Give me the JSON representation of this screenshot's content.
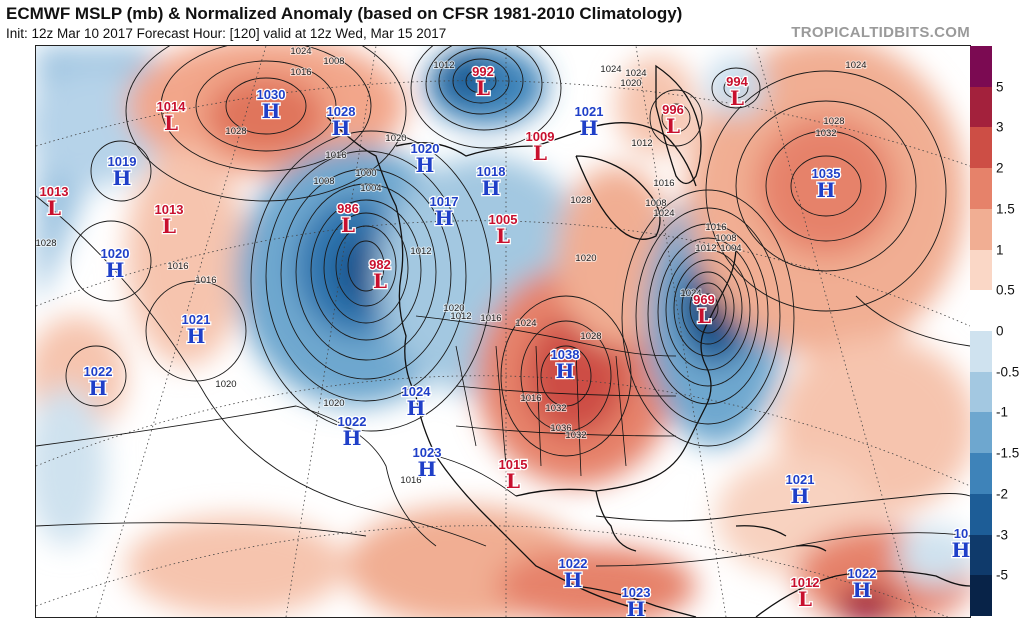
{
  "header": {
    "title": "ECMWF MSLP (mb) & Normalized Anomaly (based on CFSR 1981-2010 Climatology)",
    "subtitle": "Init: 12z Mar 10 2017   Forecast Hour: [120]   valid at 12z Wed, Mar 15 2017",
    "brand": "TROPICALTIDBITS.COM"
  },
  "colors": {
    "high": "#1f3fc8",
    "low": "#c8102e",
    "contour": "#1a1a1a"
  },
  "colorbar": {
    "labels": [
      "5",
      "3",
      "2",
      "1.5",
      "1",
      "0.5",
      "0",
      "-0.5",
      "-1",
      "-1.5",
      "-2",
      "-3",
      "-5"
    ],
    "segment_colors": [
      "#7b0a52",
      "#a3213c",
      "#cd4e45",
      "#e6826a",
      "#f1ae93",
      "#fad7c6",
      "#ffffff",
      "#cfe2ef",
      "#a3c8e1",
      "#6ea7cf",
      "#3e83b9",
      "#1d5d97",
      "#0f3a6b",
      "#082348"
    ]
  },
  "pressure_centers": [
    {
      "kind": "L",
      "value": "1014"
    },
    {
      "kind": "H",
      "value": "1030"
    },
    {
      "kind": "H",
      "value": "1028"
    },
    {
      "kind": "L",
      "value": "992"
    },
    {
      "kind": "H",
      "value": "1021"
    },
    {
      "kind": "L",
      "value": "996"
    },
    {
      "kind": "L",
      "value": "994"
    },
    {
      "kind": "H",
      "value": "1019"
    },
    {
      "kind": "L",
      "value": "1013"
    },
    {
      "kind": "L",
      "value": "1013"
    },
    {
      "kind": "H",
      "value": "1020"
    },
    {
      "kind": "L",
      "value": "986"
    },
    {
      "kind": "H",
      "value": "1017"
    },
    {
      "kind": "H",
      "value": "1018"
    },
    {
      "kind": "L",
      "value": "1009"
    },
    {
      "kind": "L",
      "value": "1005"
    },
    {
      "kind": "H",
      "value": "1035"
    },
    {
      "kind": "H",
      "value": "1020"
    },
    {
      "kind": "L",
      "value": "982"
    },
    {
      "kind": "H",
      "value": "1021"
    },
    {
      "kind": "L",
      "value": "969"
    },
    {
      "kind": "H",
      "value": "1038"
    },
    {
      "kind": "H",
      "value": "1022"
    },
    {
      "kind": "H",
      "value": "1024"
    },
    {
      "kind": "H",
      "value": "1022"
    },
    {
      "kind": "H",
      "value": "1023"
    },
    {
      "kind": "L",
      "value": "1015"
    },
    {
      "kind": "H",
      "value": "1021"
    },
    {
      "kind": "H",
      "value": "1022"
    },
    {
      "kind": "H",
      "value": "1023"
    },
    {
      "kind": "H",
      "value": "1022"
    },
    {
      "kind": "L",
      "value": "1012"
    },
    {
      "kind": "H",
      "value": "10"
    }
  ],
  "isobar_labels": [
    "1024",
    "1016",
    "1008",
    "1028",
    "1012",
    "1020",
    "1016",
    "1008",
    "1000",
    "1004",
    "1012",
    "1016",
    "1028",
    "1024",
    "1024",
    "1020",
    "1012",
    "1016",
    "1008",
    "1028",
    "1024",
    "1032",
    "1028",
    "1024",
    "1016",
    "1008",
    "1012",
    "1004",
    "1020",
    "1016",
    "1012",
    "1024",
    "1020",
    "1016",
    "1032",
    "1036",
    "1032",
    "1028",
    "1024",
    "1016",
    "1020",
    "1020",
    "1016"
  ]
}
